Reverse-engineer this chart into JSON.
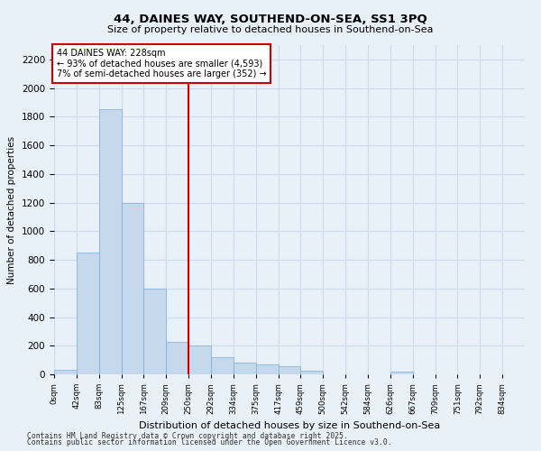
{
  "title1": "44, DAINES WAY, SOUTHEND-ON-SEA, SS1 3PQ",
  "title2": "Size of property relative to detached houses in Southend-on-Sea",
  "xlabel": "Distribution of detached houses by size in Southend-on-Sea",
  "ylabel": "Number of detached properties",
  "bin_labels": [
    "0sqm",
    "42sqm",
    "83sqm",
    "125sqm",
    "167sqm",
    "209sqm",
    "250sqm",
    "292sqm",
    "334sqm",
    "375sqm",
    "417sqm",
    "459sqm",
    "500sqm",
    "542sqm",
    "584sqm",
    "626sqm",
    "667sqm",
    "709sqm",
    "751sqm",
    "792sqm",
    "834sqm"
  ],
  "bar_values": [
    30,
    850,
    1850,
    1200,
    600,
    225,
    200,
    120,
    80,
    70,
    55,
    25,
    0,
    0,
    0,
    22,
    0,
    0,
    0,
    0,
    0
  ],
  "bar_color": "#c5d8ec",
  "bar_edge_color": "#7aafd4",
  "grid_color": "#ccdaeb",
  "bg_color": "#e8f0f8",
  "vline_x": 6.0,
  "vline_color": "#cc0000",
  "annotation_text": "44 DAINES WAY: 228sqm\n← 93% of detached houses are smaller (4,593)\n7% of semi-detached houses are larger (352) →",
  "annotation_box_color": "#ffffff",
  "annotation_box_edge": "#cc0000",
  "ylim": [
    0,
    2300
  ],
  "yticks": [
    0,
    200,
    400,
    600,
    800,
    1000,
    1200,
    1400,
    1600,
    1800,
    2000,
    2200
  ],
  "footer1": "Contains HM Land Registry data © Crown copyright and database right 2025.",
  "footer2": "Contains public sector information licensed under the Open Government Licence v3.0."
}
